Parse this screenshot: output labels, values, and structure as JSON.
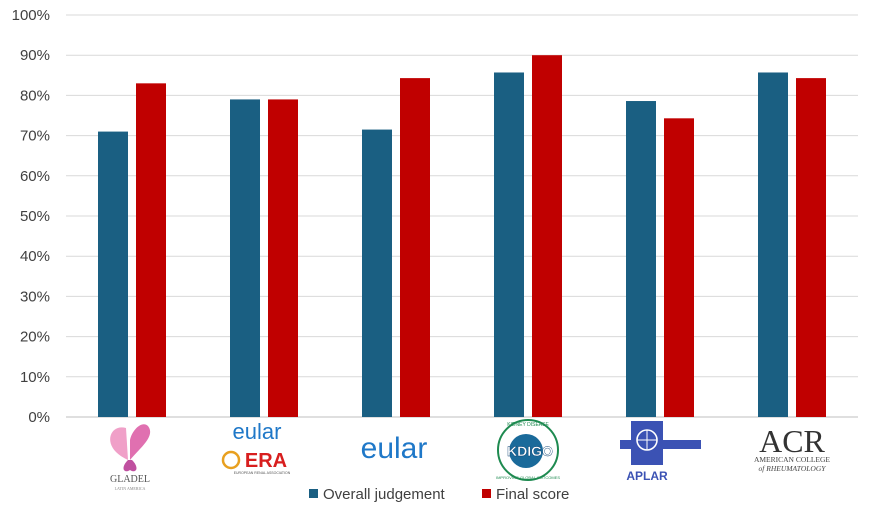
{
  "chart_data": {
    "type": "bar",
    "categories": [
      "GLADEL",
      "eular ERA",
      "eular",
      "KDIGO",
      "APLAR",
      "ACR"
    ],
    "series": [
      {
        "name": "Overall judgement",
        "values": [
          71,
          79,
          71.5,
          85.7,
          78.6,
          85.7
        ],
        "color": "#1a5f82"
      },
      {
        "name": "Final score",
        "values": [
          83,
          79,
          84.3,
          90,
          74.3,
          84.3
        ],
        "color": "#c00000"
      }
    ],
    "ylim": [
      0,
      100
    ],
    "yticks": [
      "0%",
      "10%",
      "20%",
      "30%",
      "40%",
      "50%",
      "60%",
      "70%",
      "80%",
      "90%",
      "100%"
    ],
    "grid": true,
    "legend_position": "bottom"
  },
  "logos": {
    "gladel": {
      "name": "GLADEL",
      "sub": "LATIN AMERICA"
    },
    "eular_era": {
      "top": "eular",
      "bottom": "ERA",
      "sub": "EUROPEAN RENAL ASSOCIATION"
    },
    "eular": {
      "text": "eular"
    },
    "kdigo": {
      "center": "KDIGO",
      "ring_top": "KIDNEY DISEASE",
      "ring_bottom": "IMPROVING GLOBAL OUTCOMES"
    },
    "aplar": {
      "text": "APLAR"
    },
    "acr": {
      "big": "ACR",
      "line1": "AMERICAN COLLEGE",
      "line2": "of RHEUMATOLOGY"
    }
  }
}
